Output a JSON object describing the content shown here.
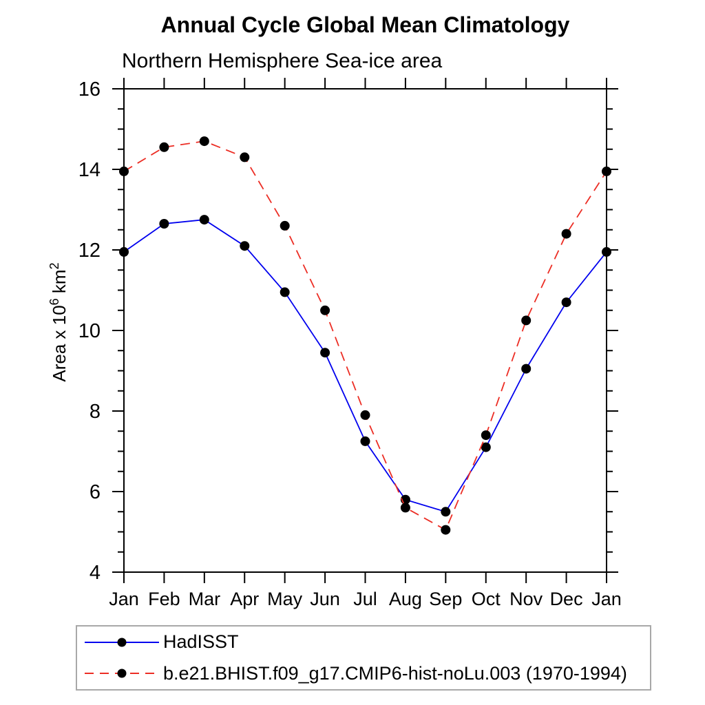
{
  "chart_data": {
    "type": "line",
    "title": "Annual Cycle Global Mean Climatology",
    "subtitle": "Northern Hemisphere Sea-ice area",
    "xlabel": "",
    "ylabel": "Area x 10^6 km^2",
    "ylabel_parts": [
      {
        "text": "Area x 10",
        "sup": false
      },
      {
        "text": "6",
        "sup": true
      },
      {
        "text": " km",
        "sup": false
      },
      {
        "text": "2",
        "sup": true
      }
    ],
    "categories": [
      "Jan",
      "Feb",
      "Mar",
      "Apr",
      "May",
      "Jun",
      "Jul",
      "Aug",
      "Sep",
      "Oct",
      "Nov",
      "Dec",
      "Jan"
    ],
    "ylim": [
      4,
      16
    ],
    "ytick_major": [
      4,
      6,
      8,
      10,
      12,
      14,
      16
    ],
    "ytick_minor_step": 0.5,
    "grid": false,
    "legend_position": "bottom-left-box",
    "axis_color": "#000000",
    "marker_color": "#000000",
    "series": [
      {
        "name": "HadISST",
        "color": "#0000ee",
        "line_style": "solid",
        "marker": "filled-circle",
        "values": [
          11.95,
          12.65,
          12.75,
          12.1,
          10.95,
          9.45,
          7.25,
          5.8,
          5.5,
          7.1,
          9.05,
          10.7,
          11.95
        ]
      },
      {
        "name": "b.e21.BHIST.f09_g17.CMIP6-hist-noLu.003 (1970-1994)",
        "color": "#ec2d24",
        "line_style": "dashed",
        "marker": "filled-circle",
        "values": [
          13.95,
          14.55,
          14.7,
          14.3,
          12.6,
          10.5,
          7.9,
          5.6,
          5.05,
          7.4,
          10.25,
          12.4,
          13.95
        ]
      }
    ]
  }
}
